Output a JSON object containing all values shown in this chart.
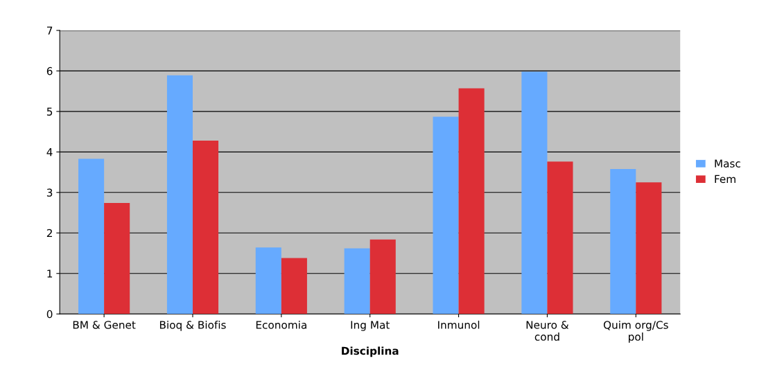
{
  "chart_data": {
    "type": "bar",
    "xlabel": "Disciplina",
    "categories": [
      "BM & Genet",
      "Bioq & Biofis",
      "Economia",
      "Ing Mat",
      "Inmunol",
      "Neuro &\ncond",
      "Quim org/Cs\npol"
    ],
    "series": [
      {
        "name": "Masc",
        "color": "#66aaff",
        "values": [
          3.83,
          5.89,
          1.64,
          1.62,
          4.87,
          5.98,
          3.58
        ]
      },
      {
        "name": "Fem",
        "color": "#dd2f36",
        "values": [
          2.74,
          4.28,
          1.38,
          1.84,
          5.57,
          3.76,
          3.25
        ]
      }
    ],
    "ylim": [
      0,
      7
    ],
    "yticks": [
      0,
      1,
      2,
      3,
      4,
      5,
      6,
      7
    ],
    "grid": "y",
    "legend": "right"
  }
}
